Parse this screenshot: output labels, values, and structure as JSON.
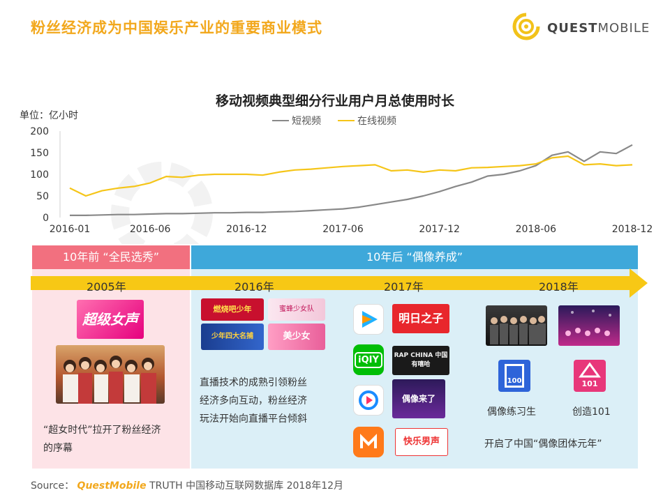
{
  "header": {
    "title": "粉丝经济成为中国娱乐产业的重要商业模式",
    "brand_bold": "QUEST",
    "brand_light": "MOBILE"
  },
  "chart_data": {
    "type": "line",
    "title": "移动视频典型细分行业用户月总使用时长",
    "unit": "单位：亿小时",
    "ylim": [
      0,
      200
    ],
    "yticks": [
      0,
      50,
      100,
      150,
      200
    ],
    "x_tick_labels": [
      "2016-01",
      "2016-06",
      "2016-12",
      "2017-06",
      "2017-12",
      "2018-06",
      "2018-12"
    ],
    "x": [
      "2016-01",
      "2016-02",
      "2016-03",
      "2016-04",
      "2016-05",
      "2016-06",
      "2016-07",
      "2016-08",
      "2016-09",
      "2016-10",
      "2016-11",
      "2016-12",
      "2017-01",
      "2017-02",
      "2017-03",
      "2017-04",
      "2017-05",
      "2017-06",
      "2017-07",
      "2017-08",
      "2017-09",
      "2017-10",
      "2017-11",
      "2017-12",
      "2018-01",
      "2018-02",
      "2018-03",
      "2018-04",
      "2018-05",
      "2018-06",
      "2018-07",
      "2018-08",
      "2018-09",
      "2018-10",
      "2018-11",
      "2018-12"
    ],
    "legend_position": "top-center",
    "series": [
      {
        "name": "短视频",
        "color": "#888888",
        "values": [
          5,
          5,
          6,
          7,
          7,
          8,
          9,
          9,
          10,
          11,
          11,
          12,
          12,
          13,
          14,
          16,
          18,
          20,
          24,
          30,
          36,
          42,
          50,
          60,
          72,
          82,
          96,
          100,
          108,
          120,
          144,
          152,
          130,
          152,
          148,
          168
        ]
      },
      {
        "name": "在线视频",
        "color": "#f5c518",
        "values": [
          68,
          50,
          62,
          68,
          72,
          80,
          95,
          93,
          98,
          100,
          100,
          100,
          98,
          105,
          110,
          112,
          115,
          118,
          120,
          122,
          108,
          110,
          105,
          110,
          108,
          115,
          116,
          118,
          120,
          124,
          138,
          142,
          122,
          124,
          120,
          122
        ]
      }
    ]
  },
  "timeline": {
    "before_label": "10年前 “全民选秀”",
    "after_label": "10年后 “偶像养成”",
    "years": [
      "2005年",
      "2016年",
      "2017年",
      "2018年"
    ],
    "desc_2005": [
      "“超女时代”拉开了粉丝经济",
      "的序幕"
    ],
    "desc_2016": [
      "直播技术的成熟引领粉丝",
      "经济多向互动，粉丝经济",
      "玩法开始向直播平台倾斜"
    ],
    "show_2005": "超级女声",
    "shows_2016": [
      "燃烧吧少年",
      "蜜蜂少女队",
      "少年四大名捕",
      "美少女"
    ],
    "shows_2017": [
      "明日之子",
      "RAP CHINA 中国有嘻哈",
      "偶像来了",
      "快乐男声"
    ],
    "caption_idol": "偶像练习生",
    "caption_produce": "创造101",
    "logo_idol": "100",
    "logo_produce": "101",
    "note_2018": "开启了中国“偶像团体元年”"
  },
  "source": {
    "label": "Source：",
    "brand": "QuestMobile",
    "text": "TRUTH 中国移动互联网数据库 2018年12月"
  }
}
